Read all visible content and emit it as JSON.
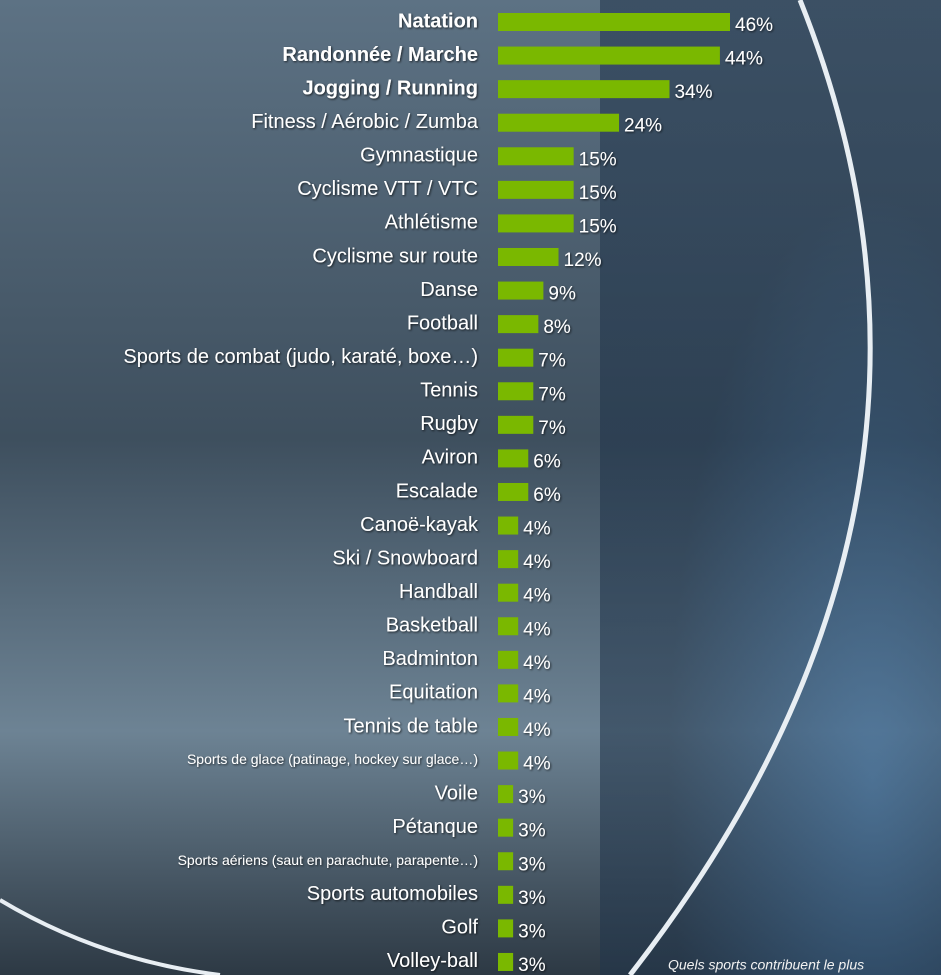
{
  "chart_data": {
    "type": "bar",
    "orientation": "horizontal",
    "color": "#7ab800",
    "categories": [
      "Natation",
      "Randonnée / Marche",
      "Jogging / Running",
      "Fitness / Aérobic / Zumba",
      "Gymnastique",
      "Cyclisme VTT / VTC",
      "Athlétisme",
      "Cyclisme sur route",
      "Danse",
      "Football",
      "Sports de combat (judo, karaté, boxe…)",
      "Tennis",
      "Rugby",
      "Aviron",
      "Escalade",
      "Canoë-kayak",
      "Ski / Snowboard",
      "Handball",
      "Basketball",
      "Badminton",
      "Equitation",
      "Tennis de table",
      "Sports de glace (patinage, hockey sur glace…)",
      "Voile",
      "Pétanque",
      "Sports aériens (saut en parachute, parapente…)",
      "Sports automobiles",
      "Golf",
      "Volley-ball"
    ],
    "values": [
      46,
      44,
      34,
      24,
      15,
      15,
      15,
      12,
      9,
      8,
      7,
      7,
      7,
      6,
      6,
      4,
      4,
      4,
      4,
      4,
      4,
      4,
      4,
      3,
      3,
      3,
      3,
      3,
      3
    ],
    "value_labels": [
      "46%",
      "44%",
      "34%",
      "24%",
      "15%",
      "15%",
      "15%",
      "12%",
      "9%",
      "8%",
      "7%",
      "7%",
      "7%",
      "6%",
      "6%",
      "4%",
      "4%",
      "4%",
      "4%",
      "4%",
      "4%",
      "4%",
      "4%",
      "3%",
      "3%",
      "3%",
      "3%",
      "3%",
      "3%"
    ],
    "note": "Quels sports contribuent le plus"
  }
}
